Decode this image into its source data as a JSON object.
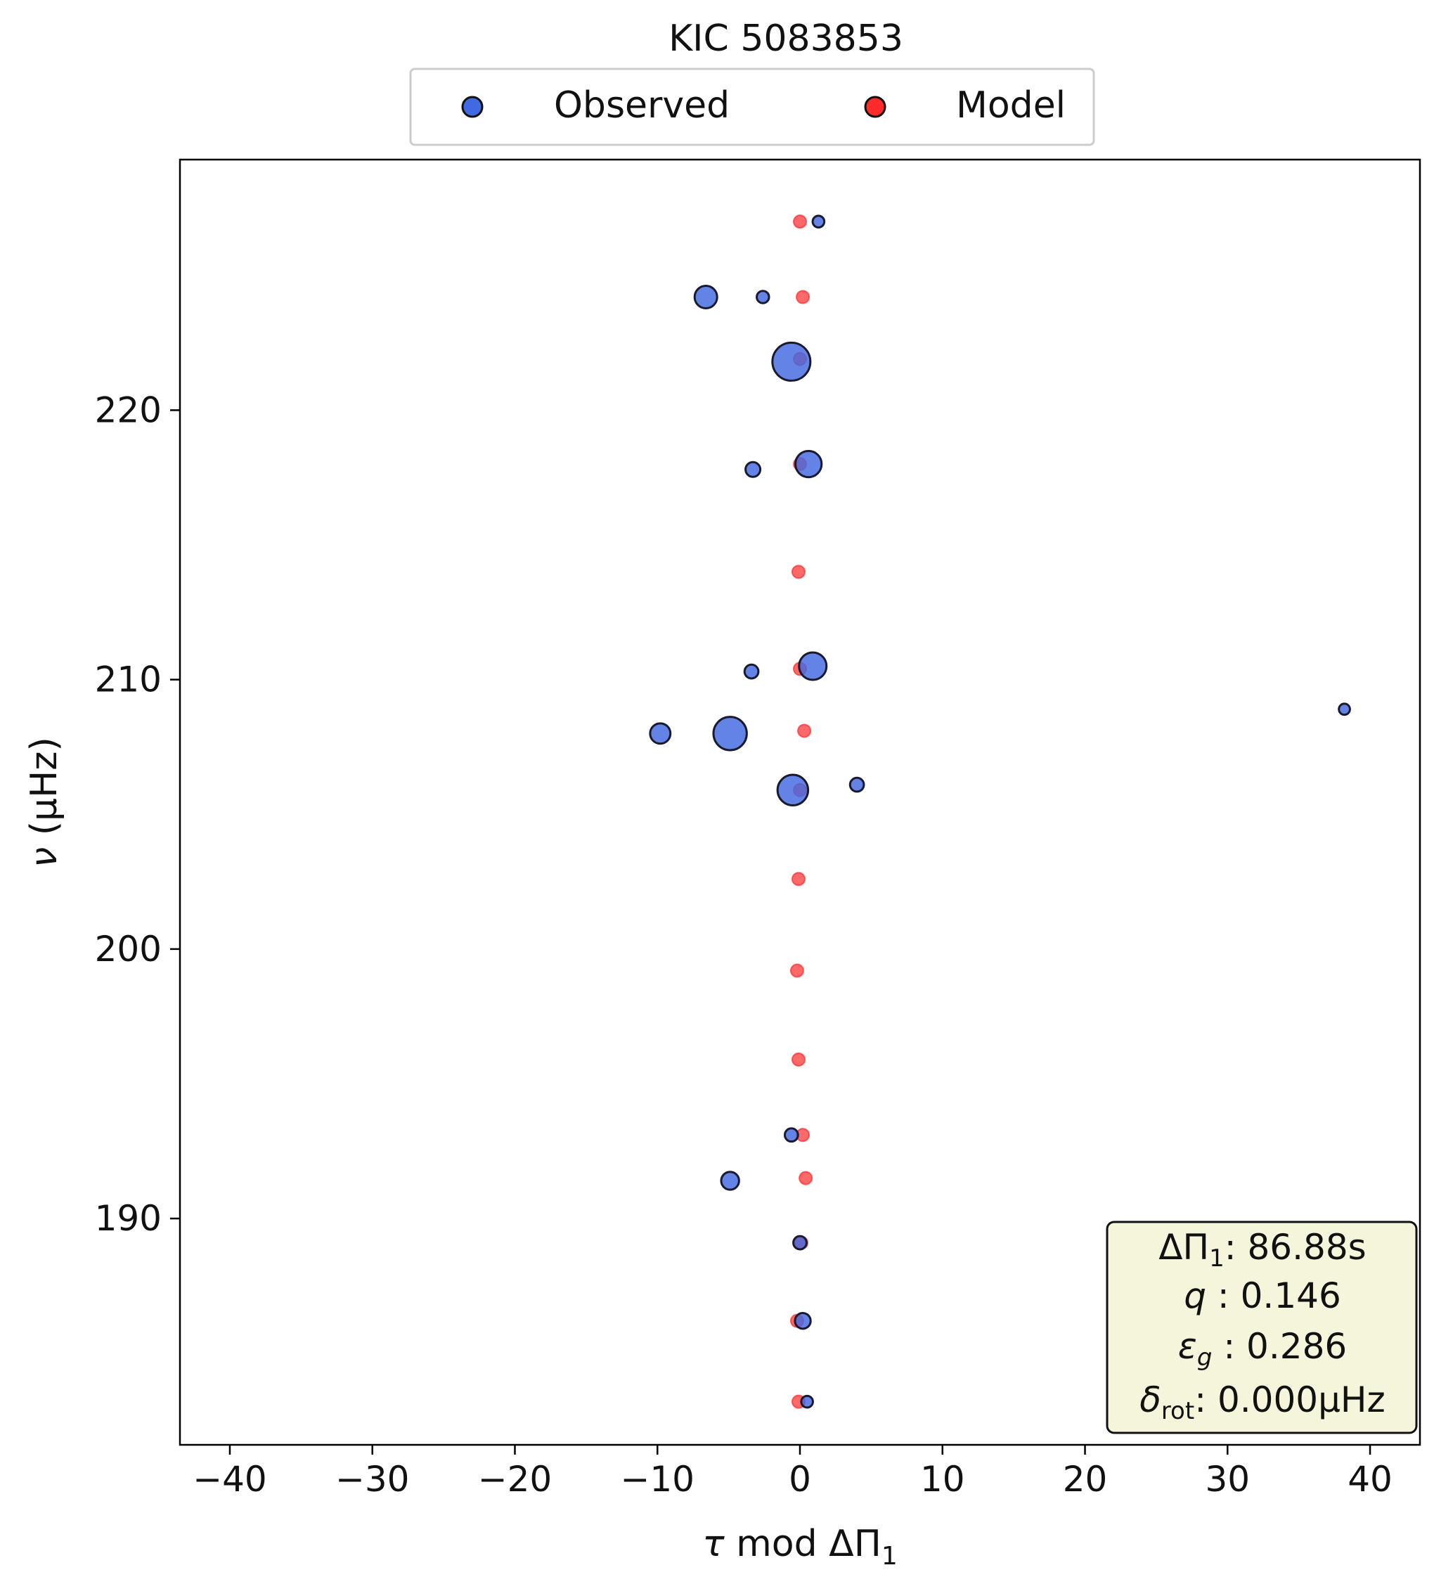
{
  "chart_data": {
    "type": "scatter",
    "title": "KIC 5083853",
    "xlabel_parts": [
      "τ",
      " mod ΔΠ",
      "1"
    ],
    "ylabel_parts": [
      "ν",
      " (μHz)"
    ],
    "xlim": [
      -43.5,
      43.5
    ],
    "ylim": [
      181.6,
      229.3
    ],
    "xticks": [
      -40,
      -30,
      -20,
      -10,
      0,
      10,
      20,
      30,
      40
    ],
    "xtick_labels": [
      "−40",
      "−30",
      "−20",
      "−10",
      "0",
      "10",
      "20",
      "30",
      "40"
    ],
    "yticks": [
      190,
      200,
      210,
      220
    ],
    "ytick_labels": [
      "190",
      "200",
      "210",
      "220"
    ],
    "grid": false,
    "legend": {
      "placement": "top-center",
      "entries": [
        "Observed",
        "Model"
      ]
    },
    "colors": {
      "observed": "#4169e1",
      "model": "#ff2a2a",
      "edge": "#1a1a2e",
      "infobox_bg": "#f5f5dc"
    },
    "series": [
      {
        "name": "Observed",
        "points": [
          {
            "x": 1.3,
            "y": 227.0,
            "s": 0.15
          },
          {
            "x": -6.6,
            "y": 224.2,
            "s": 0.5
          },
          {
            "x": -2.6,
            "y": 224.2,
            "s": 0.17
          },
          {
            "x": -0.6,
            "y": 221.8,
            "s": 1.0
          },
          {
            "x": 0.6,
            "y": 218.0,
            "s": 0.62
          },
          {
            "x": -3.3,
            "y": 217.8,
            "s": 0.25
          },
          {
            "x": 0.9,
            "y": 210.5,
            "s": 0.66
          },
          {
            "x": -3.4,
            "y": 210.3,
            "s": 0.22
          },
          {
            "x": 38.2,
            "y": 208.9,
            "s": 0.13
          },
          {
            "x": -9.8,
            "y": 208.0,
            "s": 0.43
          },
          {
            "x": -4.9,
            "y": 208.0,
            "s": 0.85
          },
          {
            "x": -0.5,
            "y": 205.9,
            "s": 0.76
          },
          {
            "x": 4.0,
            "y": 206.1,
            "s": 0.22
          },
          {
            "x": -0.6,
            "y": 193.1,
            "s": 0.2
          },
          {
            "x": -4.9,
            "y": 191.4,
            "s": 0.35
          },
          {
            "x": 0.0,
            "y": 189.1,
            "s": 0.2
          },
          {
            "x": 0.2,
            "y": 186.2,
            "s": 0.28
          },
          {
            "x": 0.5,
            "y": 183.2,
            "s": 0.15
          }
        ]
      },
      {
        "name": "Model",
        "points": [
          {
            "x": 0.0,
            "y": 227.0
          },
          {
            "x": 0.2,
            "y": 224.2
          },
          {
            "x": 0.0,
            "y": 221.9
          },
          {
            "x": 0.0,
            "y": 218.0
          },
          {
            "x": -0.1,
            "y": 214.0
          },
          {
            "x": 0.0,
            "y": 210.4
          },
          {
            "x": 0.3,
            "y": 208.1
          },
          {
            "x": 0.0,
            "y": 205.9
          },
          {
            "x": -0.1,
            "y": 202.6
          },
          {
            "x": -0.2,
            "y": 199.2
          },
          {
            "x": -0.1,
            "y": 195.9
          },
          {
            "x": 0.2,
            "y": 193.1
          },
          {
            "x": 0.4,
            "y": 191.5
          },
          {
            "x": 0.1,
            "y": 189.1
          },
          {
            "x": -0.2,
            "y": 186.2
          },
          {
            "x": -0.1,
            "y": 183.2
          }
        ]
      }
    ],
    "infobox": {
      "placement": "bottom-right",
      "lines": [
        [
          "ΔΠ",
          "1",
          ": 86.88s"
        ],
        [
          "q",
          "",
          " :  0.146"
        ],
        [
          "ε",
          "g",
          " : 0.286"
        ],
        [
          "δ",
          "rot",
          ": 0.000μHz"
        ]
      ]
    }
  }
}
